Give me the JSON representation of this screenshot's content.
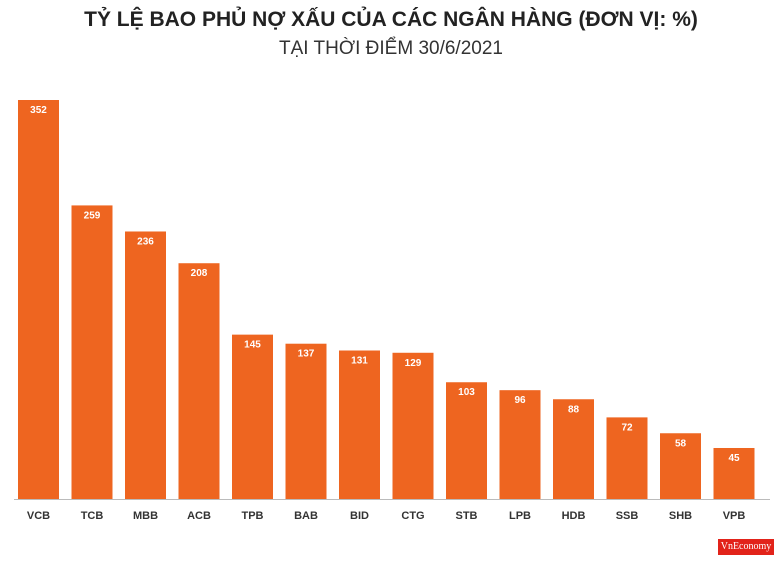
{
  "chart_data": {
    "type": "bar",
    "title": "TỶ LỆ BAO PHỦ NỢ XẤU CỦA CÁC NGÂN HÀNG (ĐƠN VỊ: %)",
    "subtitle": "TẠI THỜI ĐIỂM 30/6/2021",
    "categories": [
      "VCB",
      "TCB",
      "MBB",
      "ACB",
      "TPB",
      "BAB",
      "BID",
      "CTG",
      "STB",
      "LPB",
      "HDB",
      "SSB",
      "SHB",
      "VPB"
    ],
    "values": [
      352,
      259,
      236,
      208,
      145,
      137,
      131,
      129,
      103,
      96,
      88,
      72,
      58,
      45
    ],
    "xlabel": "",
    "ylabel": "",
    "ylim": [
      0,
      352
    ],
    "grid": false,
    "bar_color": "#ee6520",
    "axis_color": "#bbbbbb"
  },
  "logo": {
    "text": "VnEconomy"
  }
}
